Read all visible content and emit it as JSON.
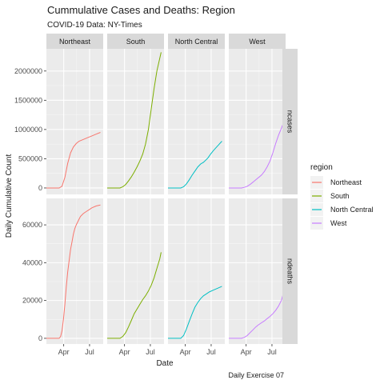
{
  "chart_data": {
    "type": "line",
    "title": "Cummulative Cases and Deaths: Region",
    "subtitle": "COVID-19 Data: NY-Times",
    "xlabel": "Date",
    "ylabel": "Daily Cumulative Count",
    "caption": "Daily Exercise 07",
    "legend_title": "region",
    "legend_position": "right",
    "facet_cols": [
      "Northeast",
      "South",
      "North Central",
      "West"
    ],
    "facet_rows": [
      "ncases",
      "ndeaths"
    ],
    "x_ticks": [
      "Apr",
      "Jul"
    ],
    "x_tick_days": [
      61,
      152
    ],
    "xlim_days": [
      0,
      200
    ],
    "y_ticks": {
      "ncases": [
        "0",
        "500000",
        "1000000",
        "1500000",
        "2000000"
      ],
      "ndeaths": [
        "0",
        "20000",
        "40000",
        "60000"
      ]
    },
    "y_tick_values": {
      "ncases": [
        0,
        500000,
        1000000,
        1500000,
        2000000
      ],
      "ndeaths": [
        0,
        20000,
        40000,
        60000
      ]
    },
    "ylim": {
      "ncases": [
        -110000,
        2380000
      ],
      "ndeaths": [
        -3000,
        74000
      ]
    },
    "grid": true,
    "colors": {
      "Northeast": "#F8766D",
      "South": "#7CAE00",
      "North Central": "#00BFC4",
      "West": "#C77CFF"
    },
    "series": [
      {
        "name": "Northeast",
        "metric": "ncases",
        "days": [
          0,
          45,
          55,
          65,
          75,
          85,
          95,
          105,
          115,
          130,
          145,
          160,
          175,
          190
        ],
        "values": [
          0,
          0,
          30000,
          180000,
          420000,
          600000,
          700000,
          760000,
          800000,
          830000,
          860000,
          890000,
          920000,
          950000
        ]
      },
      {
        "name": "South",
        "metric": "ncases",
        "days": [
          0,
          45,
          55,
          65,
          75,
          85,
          95,
          105,
          115,
          125,
          135,
          145,
          155,
          165,
          175,
          190
        ],
        "values": [
          0,
          0,
          20000,
          60000,
          120000,
          190000,
          270000,
          360000,
          460000,
          580000,
          750000,
          1000000,
          1350000,
          1700000,
          2000000,
          2320000
        ]
      },
      {
        "name": "North Central",
        "metric": "ncases",
        "days": [
          0,
          45,
          55,
          65,
          75,
          85,
          95,
          105,
          115,
          125,
          140,
          150,
          160,
          175,
          190
        ],
        "values": [
          0,
          0,
          20000,
          70000,
          140000,
          220000,
          290000,
          360000,
          410000,
          440000,
          510000,
          580000,
          640000,
          720000,
          800000
        ]
      },
      {
        "name": "West",
        "metric": "ncases",
        "days": [
          0,
          45,
          55,
          65,
          75,
          85,
          95,
          105,
          115,
          125,
          135,
          145,
          155,
          165,
          175,
          185,
          190
        ],
        "values": [
          0,
          0,
          10000,
          30000,
          60000,
          100000,
          140000,
          180000,
          220000,
          280000,
          360000,
          460000,
          600000,
          760000,
          900000,
          1020000,
          1080000
        ]
      },
      {
        "name": "Northeast",
        "metric": "ndeaths",
        "days": [
          0,
          45,
          50,
          55,
          60,
          65,
          70,
          75,
          80,
          85,
          90,
          95,
          100,
          105,
          110,
          115,
          120,
          130,
          140,
          150,
          160,
          175,
          190
        ],
        "values": [
          0,
          0,
          1000,
          4000,
          10000,
          18000,
          27000,
          35000,
          41000,
          47000,
          51000,
          55000,
          58000,
          60000,
          61500,
          63000,
          64500,
          66000,
          67000,
          68000,
          69000,
          70000,
          70500
        ]
      },
      {
        "name": "South",
        "metric": "ndeaths",
        "days": [
          0,
          45,
          55,
          65,
          75,
          85,
          95,
          105,
          115,
          125,
          135,
          145,
          155,
          165,
          175,
          185,
          190
        ],
        "values": [
          0,
          0,
          1000,
          3000,
          6000,
          9500,
          13000,
          15500,
          18000,
          20500,
          22500,
          25000,
          28000,
          32000,
          37000,
          42000,
          45500
        ]
      },
      {
        "name": "North Central",
        "metric": "ndeaths",
        "days": [
          0,
          45,
          55,
          65,
          75,
          85,
          95,
          105,
          115,
          125,
          135,
          145,
          160,
          175,
          190
        ],
        "values": [
          0,
          0,
          1500,
          5000,
          9000,
          13000,
          16500,
          19000,
          21000,
          22500,
          23500,
          24500,
          25500,
          26500,
          27500
        ]
      },
      {
        "name": "West",
        "metric": "ndeaths",
        "days": [
          0,
          45,
          55,
          65,
          75,
          85,
          95,
          105,
          115,
          125,
          135,
          145,
          155,
          165,
          175,
          185,
          190
        ],
        "values": [
          0,
          0,
          500,
          1500,
          3000,
          4500,
          6000,
          7200,
          8200,
          9200,
          10400,
          11600,
          13000,
          14800,
          17000,
          20000,
          22500
        ]
      }
    ]
  }
}
